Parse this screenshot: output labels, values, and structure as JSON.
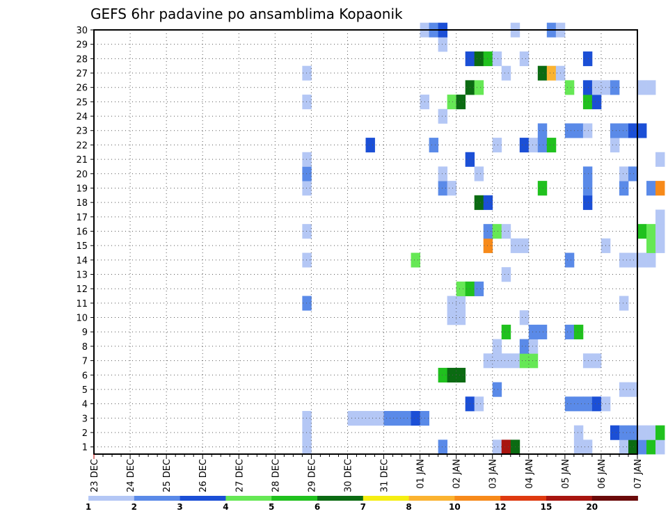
{
  "chart_data": {
    "type": "heatmap",
    "title": "GEFS 6hr padavine po ansamblima Kopaonik",
    "x_tick_labels": [
      "23 DEC",
      "24 DEC",
      "25 DEC",
      "26 DEC",
      "27 DEC",
      "28 DEC",
      "29 DEC",
      "30 DEC",
      "31 DEC",
      "01 JAN",
      "02 JAN",
      "03 JAN",
      "04 JAN",
      "05 JAN",
      "06 JAN",
      "07 JAN"
    ],
    "x_range_days": [
      0,
      15
    ],
    "steps_per_day": 4,
    "y_range": [
      0,
      30
    ],
    "y_ticks": [
      1,
      2,
      3,
      4,
      5,
      6,
      7,
      8,
      9,
      10,
      11,
      12,
      13,
      14,
      15,
      16,
      17,
      18,
      19,
      20,
      21,
      22,
      23,
      24,
      25,
      26,
      27,
      28,
      29,
      30
    ],
    "grid": true,
    "legend": {
      "placement": "bottom",
      "levels": [
        "1",
        "2",
        "3",
        "4",
        "5",
        "6",
        "7",
        "8",
        "10",
        "12",
        "15",
        "20"
      ],
      "colors": [
        "#b4c7f5",
        "#5a8ae8",
        "#1b4fd6",
        "#66e855",
        "#20c11e",
        "#0b6b12",
        "#f5ee12",
        "#fbb330",
        "#f78a1a",
        "#df3a10",
        "#a81510",
        "#6b0a0a"
      ]
    },
    "cells": [
      [
        23,
        1,
        1
      ],
      [
        23,
        2,
        1
      ],
      [
        23,
        3,
        1
      ],
      [
        23,
        11,
        2
      ],
      [
        23,
        14,
        1
      ],
      [
        23,
        16,
        1
      ],
      [
        23,
        19,
        1
      ],
      [
        23,
        20,
        2
      ],
      [
        23,
        21,
        1
      ],
      [
        23,
        25,
        1
      ],
      [
        23,
        27,
        1
      ],
      [
        28,
        3,
        1
      ],
      [
        29,
        3,
        1
      ],
      [
        30,
        3,
        1
      ],
      [
        31,
        3,
        1
      ],
      [
        32,
        3,
        2
      ],
      [
        33,
        3,
        2
      ],
      [
        34,
        3,
        2
      ],
      [
        35,
        3,
        3
      ],
      [
        36,
        3,
        2
      ],
      [
        30,
        22,
        3
      ],
      [
        35,
        14,
        4
      ],
      [
        36,
        25,
        1
      ],
      [
        36,
        30,
        1
      ],
      [
        37,
        22,
        2
      ],
      [
        37,
        30,
        2
      ],
      [
        38,
        1,
        2
      ],
      [
        38,
        6,
        5
      ],
      [
        38,
        19,
        2
      ],
      [
        38,
        20,
        1
      ],
      [
        38,
        24,
        1
      ],
      [
        38,
        29,
        1
      ],
      [
        38,
        30,
        3
      ],
      [
        39,
        6,
        6
      ],
      [
        39,
        19,
        1
      ],
      [
        39,
        25,
        4
      ],
      [
        39,
        10,
        1
      ],
      [
        39,
        11,
        1
      ],
      [
        40,
        6,
        6
      ],
      [
        40,
        10,
        1
      ],
      [
        40,
        11,
        1
      ],
      [
        40,
        12,
        4
      ],
      [
        40,
        25,
        6
      ],
      [
        41,
        4,
        3
      ],
      [
        41,
        12,
        5
      ],
      [
        41,
        21,
        3
      ],
      [
        41,
        26,
        6
      ],
      [
        41,
        28,
        3
      ],
      [
        42,
        4,
        1
      ],
      [
        42,
        12,
        2
      ],
      [
        42,
        18,
        6
      ],
      [
        42,
        20,
        1
      ],
      [
        42,
        26,
        4
      ],
      [
        42,
        28,
        6
      ],
      [
        43,
        15,
        9
      ],
      [
        43,
        16,
        2
      ],
      [
        43,
        7,
        1
      ],
      [
        43,
        18,
        3
      ],
      [
        43,
        28,
        5
      ],
      [
        44,
        1,
        1
      ],
      [
        44,
        5,
        2
      ],
      [
        44,
        7,
        1
      ],
      [
        44,
        8,
        1
      ],
      [
        44,
        16,
        4
      ],
      [
        44,
        22,
        1
      ],
      [
        44,
        28,
        1
      ],
      [
        45,
        1,
        11
      ],
      [
        45,
        7,
        1
      ],
      [
        45,
        9,
        5
      ],
      [
        45,
        13,
        1
      ],
      [
        45,
        16,
        1
      ],
      [
        45,
        27,
        1
      ],
      [
        46,
        1,
        6
      ],
      [
        46,
        7,
        1
      ],
      [
        46,
        15,
        1
      ],
      [
        46,
        30,
        1
      ],
      [
        47,
        7,
        4
      ],
      [
        47,
        8,
        2
      ],
      [
        47,
        10,
        1
      ],
      [
        47,
        15,
        1
      ],
      [
        47,
        22,
        3
      ],
      [
        47,
        28,
        1
      ],
      [
        48,
        7,
        4
      ],
      [
        48,
        8,
        1
      ],
      [
        48,
        9,
        2
      ],
      [
        48,
        22,
        1
      ],
      [
        49,
        9,
        2
      ],
      [
        49,
        22,
        2
      ],
      [
        49,
        23,
        2
      ],
      [
        49,
        19,
        5
      ],
      [
        49,
        27,
        6
      ],
      [
        50,
        22,
        5
      ],
      [
        50,
        27,
        8
      ],
      [
        50,
        30,
        2
      ],
      [
        51,
        27,
        1
      ],
      [
        51,
        30,
        1
      ],
      [
        52,
        4,
        2
      ],
      [
        52,
        9,
        2
      ],
      [
        52,
        14,
        2
      ],
      [
        52,
        26,
        4
      ],
      [
        52,
        23,
        2
      ],
      [
        53,
        1,
        1
      ],
      [
        53,
        2,
        1
      ],
      [
        53,
        4,
        2
      ],
      [
        53,
        9,
        5
      ],
      [
        53,
        23,
        2
      ],
      [
        54,
        1,
        1
      ],
      [
        54,
        4,
        2
      ],
      [
        54,
        7,
        1
      ],
      [
        54,
        18,
        3
      ],
      [
        54,
        19,
        2
      ],
      [
        54,
        20,
        2
      ],
      [
        54,
        23,
        1
      ],
      [
        54,
        25,
        5
      ],
      [
        54,
        26,
        3
      ],
      [
        54,
        28,
        3
      ],
      [
        55,
        4,
        3
      ],
      [
        55,
        7,
        1
      ],
      [
        55,
        25,
        3
      ],
      [
        55,
        26,
        1
      ],
      [
        56,
        4,
        1
      ],
      [
        56,
        15,
        1
      ],
      [
        56,
        26,
        1
      ],
      [
        57,
        2,
        3
      ],
      [
        57,
        22,
        1
      ],
      [
        57,
        23,
        2
      ],
      [
        57,
        26,
        2
      ],
      [
        58,
        1,
        1
      ],
      [
        58,
        2,
        2
      ],
      [
        58,
        11,
        1
      ],
      [
        58,
        14,
        1
      ],
      [
        58,
        5,
        1
      ],
      [
        58,
        19,
        2
      ],
      [
        58,
        20,
        1
      ],
      [
        58,
        23,
        2
      ],
      [
        59,
        1,
        6
      ],
      [
        59,
        2,
        2
      ],
      [
        59,
        14,
        1
      ],
      [
        59,
        5,
        1
      ],
      [
        59,
        20,
        2
      ],
      [
        59,
        23,
        3
      ],
      [
        60,
        1,
        2
      ],
      [
        60,
        2,
        1
      ],
      [
        60,
        14,
        1
      ],
      [
        60,
        16,
        5
      ],
      [
        60,
        23,
        3
      ],
      [
        60,
        26,
        1
      ],
      [
        61,
        1,
        5
      ],
      [
        61,
        2,
        1
      ],
      [
        61,
        14,
        1
      ],
      [
        61,
        15,
        4
      ],
      [
        61,
        16,
        4
      ],
      [
        61,
        19,
        2
      ],
      [
        61,
        26,
        1
      ],
      [
        62,
        1,
        1
      ],
      [
        62,
        2,
        5
      ],
      [
        62,
        15,
        1
      ],
      [
        62,
        16,
        1
      ],
      [
        62,
        17,
        1
      ],
      [
        62,
        19,
        9
      ],
      [
        62,
        21,
        1
      ]
    ]
  }
}
